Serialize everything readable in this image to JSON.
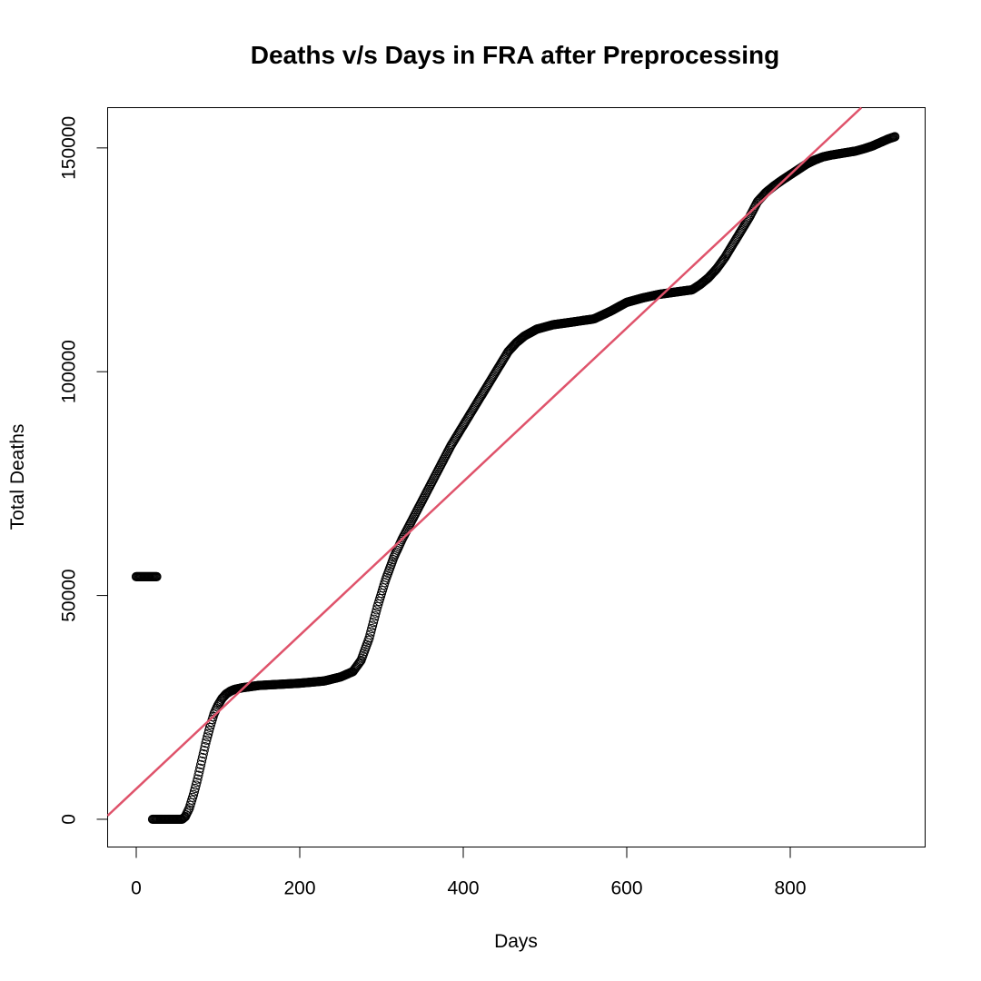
{
  "chart_data": {
    "type": "scatter",
    "title": "Deaths v/s Days in FRA after Preprocessing",
    "xlabel": "Days",
    "ylabel": "Total Deaths",
    "xlim": [
      -35,
      965
    ],
    "ylim": [
      -6200,
      159000
    ],
    "x_ticks": [
      0,
      200,
      400,
      600,
      800
    ],
    "x_tick_labels": [
      "0",
      "200",
      "400",
      "600",
      "800"
    ],
    "y_ticks": [
      0,
      50000,
      100000,
      150000
    ],
    "y_tick_labels": [
      "0",
      "50000",
      "100000",
      "150000"
    ],
    "grid": false,
    "legend": "none",
    "colors": {
      "points": "#000000",
      "fit_line": "#DF536B",
      "axes": "#000000"
    },
    "series": [
      {
        "name": "Total Deaths",
        "marker": "open-circle",
        "segments": [
          {
            "x": [
              0,
              25
            ],
            "y": [
              54200,
              54200
            ]
          },
          {
            "x": [
              20,
              56,
              60,
              65,
              70,
              75,
              80,
              85,
              90,
              95,
              100,
              105,
              110,
              115,
              120,
              130,
              150,
              180,
              200,
              230,
              250,
              265,
              275,
              285,
              295,
              305,
              315,
              325,
              335,
              345,
              355,
              365,
              375,
              385,
              395,
              405,
              415,
              425,
              435,
              445,
              455,
              465,
              475,
              490,
              510,
              530,
              560,
              580,
              600,
              620,
              640,
              660,
              680,
              690,
              700,
              710,
              720,
              730,
              740,
              750,
              760,
              770,
              780,
              790,
              800,
              810,
              820,
              830,
              840,
              850,
              860,
              870,
              880,
              890,
              900,
              910,
              920,
              928
            ],
            "y": [
              0,
              0,
              600,
              2500,
              5500,
              9000,
              13000,
              17000,
              20500,
              23500,
              25500,
              27000,
              28000,
              28600,
              29000,
              29400,
              29900,
              30200,
              30400,
              30900,
              31800,
              33000,
              35500,
              40500,
              47500,
              53500,
              58500,
              62500,
              66000,
              69500,
              73000,
              76500,
              80000,
              83500,
              86500,
              89500,
              92500,
              95500,
              98500,
              101500,
              104500,
              106500,
              108000,
              109500,
              110500,
              111000,
              111800,
              113500,
              115500,
              116500,
              117300,
              117800,
              118300,
              119500,
              121000,
              123000,
              125500,
              128500,
              131500,
              134500,
              138000,
              140000,
              141500,
              142800,
              144000,
              145200,
              146400,
              147300,
              148000,
              148400,
              148700,
              149000,
              149300,
              149800,
              150400,
              151200,
              152000,
              152500
            ]
          }
        ]
      },
      {
        "name": "Linear fit",
        "type": "line",
        "x": [
          -35,
          887
        ],
        "y": [
          800,
          159000
        ]
      }
    ]
  }
}
